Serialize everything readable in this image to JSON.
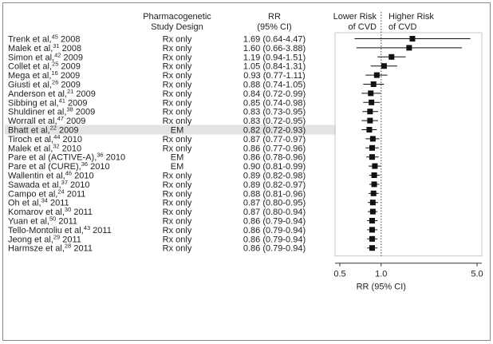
{
  "chart_data": {
    "type": "forest",
    "headers": {
      "design_line1": "Pharmacogenetic",
      "design_line2": "Study Design",
      "rr_line1": "RR",
      "rr_line2": "(95% CI)",
      "lower_line1": "Lower Risk",
      "lower_line2": "of CVD",
      "higher_line1": "Higher Risk",
      "higher_line2": "of CVD"
    },
    "xaxis": {
      "label": "RR (95% CI)",
      "scale": "log",
      "range": [
        0.5,
        5.0
      ],
      "ticks": [
        "0.5",
        "1.0",
        "5.0"
      ],
      "tick_values": [
        0.5,
        1.0,
        5.0
      ],
      "reference_line": 1.0,
      "reference_style": "dotted"
    },
    "studies": [
      {
        "author": "Trenk et al,",
        "ref": "45",
        "year": "2008",
        "design": "Rx only",
        "rr_text": "1.69 (0.64-4.47)",
        "rr": 1.69,
        "lo": 0.64,
        "hi": 4.47
      },
      {
        "author": "Malek et al,",
        "ref": "31",
        "year": "2008",
        "design": "Rx only",
        "rr_text": "1.60 (0.66-3.88)",
        "rr": 1.6,
        "lo": 0.66,
        "hi": 3.88
      },
      {
        "author": "Simon et al,",
        "ref": "42",
        "year": "2009",
        "design": "Rx only",
        "rr_text": "1.19 (0.94-1.51)",
        "rr": 1.19,
        "lo": 0.94,
        "hi": 1.51
      },
      {
        "author": "Collet et al,",
        "ref": "25",
        "year": "2009",
        "design": "Rx only",
        "rr_text": "1.05 (0.84-1.31)",
        "rr": 1.05,
        "lo": 0.84,
        "hi": 1.31
      },
      {
        "author": "Mega et al,",
        "ref": "16",
        "year": "2009",
        "design": "Rx only",
        "rr_text": "0.93 (0.77-1.11)",
        "rr": 0.93,
        "lo": 0.77,
        "hi": 1.11
      },
      {
        "author": "Giusti et al,",
        "ref": "26",
        "year": "2009",
        "design": "Rx only",
        "rr_text": "0.88 (0.74-1.05)",
        "rr": 0.88,
        "lo": 0.74,
        "hi": 1.05
      },
      {
        "author": "Anderson et al,",
        "ref": "21",
        "year": "2009",
        "design": "Rx only",
        "rr_text": "0.84 (0.72-0.99)",
        "rr": 0.84,
        "lo": 0.72,
        "hi": 0.99
      },
      {
        "author": "Sibbing et al,",
        "ref": "41",
        "year": "2009",
        "design": "Rx only",
        "rr_text": "0.85 (0.74-0.98)",
        "rr": 0.85,
        "lo": 0.74,
        "hi": 0.98
      },
      {
        "author": "Shuldiner et al,",
        "ref": "38",
        "year": "2009",
        "design": "Rx only",
        "rr_text": "0.83 (0.73-0.95)",
        "rr": 0.83,
        "lo": 0.73,
        "hi": 0.95
      },
      {
        "author": "Worrall et al,",
        "ref": "47",
        "year": "2009",
        "design": "Rx only",
        "rr_text": "0.83 (0.72-0.95)",
        "rr": 0.83,
        "lo": 0.72,
        "hi": 0.95
      },
      {
        "author": "Bhatt et al,",
        "ref": "22",
        "year": "2009",
        "design": "EM",
        "rr_text": "0.82 (0.72-0.93)",
        "rr": 0.82,
        "lo": 0.72,
        "hi": 0.93,
        "highlight": true
      },
      {
        "author": "Tiroch et al,",
        "ref": "44",
        "year": "2010",
        "design": "Rx only",
        "rr_text": "0.87 (0.77-0.97)",
        "rr": 0.87,
        "lo": 0.77,
        "hi": 0.97
      },
      {
        "author": "Malek et al,",
        "ref": "32",
        "year": "2010",
        "design": "Rx only",
        "rr_text": "0.86 (0.77-0.96)",
        "rr": 0.86,
        "lo": 0.77,
        "hi": 0.96
      },
      {
        "author": "Pare et al (ACTIVE-A),",
        "ref": "36",
        "year": "2010",
        "design": "EM",
        "rr_text": "0.86 (0.78-0.96)",
        "rr": 0.86,
        "lo": 0.78,
        "hi": 0.96
      },
      {
        "author": "Pare et al (CURE),",
        "ref": "36",
        "year": "2010",
        "design": "EM",
        "rr_text": "0.90 (0.81-0.99)",
        "rr": 0.9,
        "lo": 0.81,
        "hi": 0.99
      },
      {
        "author": "Wallentin et al,",
        "ref": "46",
        "year": "2010",
        "design": "Rx only",
        "rr_text": "0.89 (0.82-0.98)",
        "rr": 0.89,
        "lo": 0.82,
        "hi": 0.98
      },
      {
        "author": "Sawada et al,",
        "ref": "37",
        "year": "2010",
        "design": "Rx only",
        "rr_text": "0.89 (0.82-0.97)",
        "rr": 0.89,
        "lo": 0.82,
        "hi": 0.97
      },
      {
        "author": "Campo et al,",
        "ref": "24",
        "year": "2011",
        "design": "Rx only",
        "rr_text": "0.88 (0.81-0.96)",
        "rr": 0.88,
        "lo": 0.81,
        "hi": 0.96
      },
      {
        "author": "Oh et al,",
        "ref": "34",
        "year": "2011",
        "design": "Rx only",
        "rr_text": "0.87 (0.80-0.95)",
        "rr": 0.87,
        "lo": 0.8,
        "hi": 0.95
      },
      {
        "author": "Komarov et al,",
        "ref": "30",
        "year": "2011",
        "design": "Rx only",
        "rr_text": "0.87 (0.80-0.94)",
        "rr": 0.87,
        "lo": 0.8,
        "hi": 0.94
      },
      {
        "author": "Yuan et al,",
        "ref": "50",
        "year": "2011",
        "design": "Rx only",
        "rr_text": "0.86 (0.79-0.94)",
        "rr": 0.86,
        "lo": 0.79,
        "hi": 0.94
      },
      {
        "author": "Tello-Montoliu et al,",
        "ref": "43",
        "year": "2011",
        "design": "Rx only",
        "rr_text": "0.86 (0.79-0.94)",
        "rr": 0.86,
        "lo": 0.79,
        "hi": 0.94
      },
      {
        "author": "Jeong et al,",
        "ref": "29",
        "year": "2011",
        "design": "Rx only",
        "rr_text": "0.86 (0.79-0.94)",
        "rr": 0.86,
        "lo": 0.79,
        "hi": 0.94
      },
      {
        "author": "Harmsze et al,",
        "ref": "28",
        "year": "2011",
        "design": "Rx only",
        "rr_text": "0.86 (0.79-0.94)",
        "rr": 0.86,
        "lo": 0.79,
        "hi": 0.94
      }
    ],
    "colors": {
      "marker": "#111111",
      "highlight_band": "#e3e3e3",
      "frame": "#888888",
      "text": "#222222"
    }
  }
}
